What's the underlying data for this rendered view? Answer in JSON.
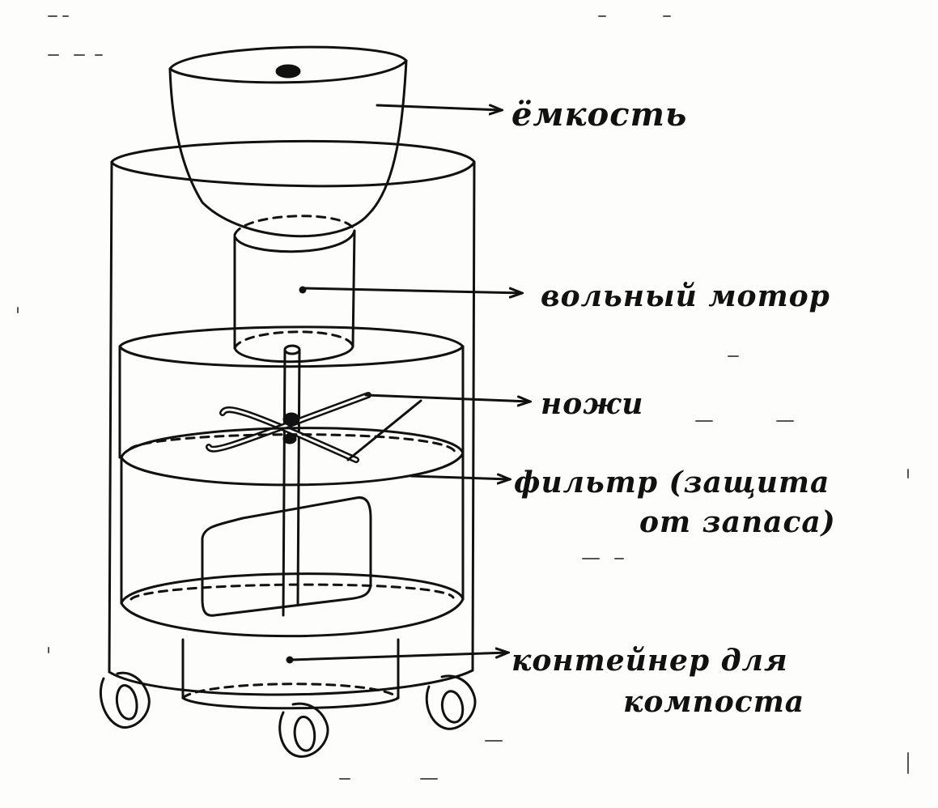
{
  "labels": {
    "container": "ёмкость",
    "motor": "вольный мотор",
    "knives": "ножи",
    "filter_line1": "фильтр (защита",
    "filter_line2": "от запаса)",
    "bin_line1": "контейнер для",
    "bin_line2": "компоста"
  },
  "colors": {
    "ink": "#111111",
    "paper": "#fdfdfb"
  }
}
